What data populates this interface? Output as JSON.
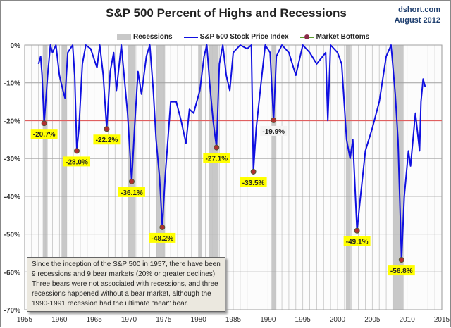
{
  "source": {
    "site": "dshort.com",
    "date": "August 2012"
  },
  "colors": {
    "line": "#1010e0",
    "recession": "#c8c8c8",
    "threshold": "#e06060",
    "marker": "#b03030",
    "label_bg": "#ffff00"
  },
  "note": [
    "Since the inception of the S&P 500  in 1957,  there have been",
    "9 recessions and 9  bear markets (20% or greater declines).",
    "Three bears were not associated with recessions, and three",
    "recessions happened without a bear market, although the",
    "1990-1991  recession had the ultimate \"near\" bear."
  ],
  "chart_data": {
    "type": "line",
    "title": "S&P 500 Percent of Highs and Recessions",
    "legend": [
      "Recessions",
      "S&P 500 Stock Price Index",
      "Market Bottoms"
    ],
    "legend_position": "top",
    "xlim": [
      1955,
      2015
    ],
    "ylim": [
      -70,
      0
    ],
    "x_ticks": [
      "1955",
      "1960",
      "1965",
      "1970",
      "1975",
      "1980",
      "1985",
      "1990",
      "1995",
      "2000",
      "2005",
      "2010",
      "2015"
    ],
    "y_ticks": [
      "0%",
      "-10%",
      "-20%",
      "-30%",
      "-40%",
      "-50%",
      "-60%",
      "-70%"
    ],
    "grid": true,
    "threshold": -20,
    "recessions": [
      [
        1957.6,
        1958.3
      ],
      [
        1960.3,
        1961.1
      ],
      [
        1969.9,
        1970.9
      ],
      [
        1973.9,
        1975.2
      ],
      [
        1980.0,
        1980.5
      ],
      [
        1981.5,
        1982.9
      ],
      [
        1990.5,
        1991.2
      ],
      [
        2001.2,
        2001.9
      ],
      [
        2007.9,
        2009.5
      ]
    ],
    "series": [
      {
        "name": "S&P 500 Stock Price Index",
        "points": [
          [
            1957.0,
            -5
          ],
          [
            1957.3,
            -3
          ],
          [
            1957.5,
            -8
          ],
          [
            1957.8,
            -20.7
          ],
          [
            1958.3,
            -8
          ],
          [
            1958.7,
            0
          ],
          [
            1959.0,
            -2
          ],
          [
            1959.5,
            0
          ],
          [
            1960.0,
            -8
          ],
          [
            1960.5,
            -12
          ],
          [
            1960.8,
            -14
          ],
          [
            1961.2,
            -2
          ],
          [
            1961.9,
            0
          ],
          [
            1962.2,
            -8
          ],
          [
            1962.5,
            -28.0
          ],
          [
            1962.8,
            -22
          ],
          [
            1963.3,
            -5
          ],
          [
            1963.8,
            0
          ],
          [
            1964.5,
            -1
          ],
          [
            1965.4,
            -6
          ],
          [
            1965.8,
            0
          ],
          [
            1966.3,
            -8
          ],
          [
            1966.8,
            -22.2
          ],
          [
            1967.3,
            -7
          ],
          [
            1967.8,
            -2
          ],
          [
            1968.2,
            -12
          ],
          [
            1968.9,
            0
          ],
          [
            1969.3,
            -8
          ],
          [
            1969.8,
            -18
          ],
          [
            1970.4,
            -36.1
          ],
          [
            1970.8,
            -22
          ],
          [
            1971.3,
            -7
          ],
          [
            1971.8,
            -13
          ],
          [
            1972.5,
            -3
          ],
          [
            1973.0,
            0
          ],
          [
            1973.5,
            -12
          ],
          [
            1973.9,
            -25
          ],
          [
            1974.4,
            -35
          ],
          [
            1974.8,
            -48.2
          ],
          [
            1975.2,
            -35
          ],
          [
            1975.6,
            -25
          ],
          [
            1976.0,
            -15
          ],
          [
            1976.8,
            -15
          ],
          [
            1977.5,
            -20
          ],
          [
            1978.2,
            -26
          ],
          [
            1978.7,
            -17
          ],
          [
            1979.3,
            -18
          ],
          [
            1980.2,
            -12
          ],
          [
            1980.8,
            -3
          ],
          [
            1981.2,
            0
          ],
          [
            1981.6,
            -10
          ],
          [
            1982.1,
            -20
          ],
          [
            1982.6,
            -27.1
          ],
          [
            1983.0,
            -5
          ],
          [
            1983.5,
            0
          ],
          [
            1984.0,
            -8
          ],
          [
            1984.5,
            -12
          ],
          [
            1985.0,
            -2
          ],
          [
            1986.0,
            0
          ],
          [
            1987.0,
            -1
          ],
          [
            1987.6,
            0
          ],
          [
            1987.9,
            -33.5
          ],
          [
            1988.3,
            -22
          ],
          [
            1989.0,
            -10
          ],
          [
            1989.6,
            0
          ],
          [
            1990.3,
            -2
          ],
          [
            1990.8,
            -19.9
          ],
          [
            1991.2,
            -3
          ],
          [
            1992.0,
            0
          ],
          [
            1993.0,
            -2
          ],
          [
            1994.0,
            -8
          ],
          [
            1995.0,
            0
          ],
          [
            1996.0,
            -2
          ],
          [
            1997.0,
            -5
          ],
          [
            1998.3,
            -2
          ],
          [
            1998.6,
            -20
          ],
          [
            1999.0,
            0
          ],
          [
            2000.0,
            -2
          ],
          [
            2000.6,
            -5
          ],
          [
            2001.3,
            -25
          ],
          [
            2001.8,
            -30
          ],
          [
            2002.2,
            -25
          ],
          [
            2002.8,
            -49.1
          ],
          [
            2003.3,
            -40
          ],
          [
            2004.0,
            -28
          ],
          [
            2005.0,
            -22
          ],
          [
            2006.0,
            -15
          ],
          [
            2007.0,
            -3
          ],
          [
            2007.7,
            0
          ],
          [
            2008.3,
            -13
          ],
          [
            2008.7,
            -25
          ],
          [
            2009.2,
            -56.8
          ],
          [
            2009.6,
            -40
          ],
          [
            2010.2,
            -28
          ],
          [
            2010.5,
            -32
          ],
          [
            2011.2,
            -18
          ],
          [
            2011.8,
            -28
          ],
          [
            2012.0,
            -15
          ],
          [
            2012.3,
            -9
          ],
          [
            2012.6,
            -11
          ]
        ]
      }
    ],
    "market_bottoms": [
      {
        "year": 1957.8,
        "value": -20.7,
        "label": "-20.7%",
        "highlight": true
      },
      {
        "year": 1962.5,
        "value": -28.0,
        "label": "-28.0%",
        "highlight": true
      },
      {
        "year": 1966.8,
        "value": -22.2,
        "label": "-22.2%",
        "highlight": true
      },
      {
        "year": 1970.4,
        "value": -36.1,
        "label": "-36.1%",
        "highlight": true
      },
      {
        "year": 1974.8,
        "value": -48.2,
        "label": "-48.2%",
        "highlight": true
      },
      {
        "year": 1982.6,
        "value": -27.1,
        "label": "-27.1%",
        "highlight": true
      },
      {
        "year": 1987.9,
        "value": -33.5,
        "label": "-33.5%",
        "highlight": true
      },
      {
        "year": 1990.8,
        "value": -19.9,
        "label": "-19.9%",
        "highlight": false
      },
      {
        "year": 2002.8,
        "value": -49.1,
        "label": "-49.1%",
        "highlight": true
      },
      {
        "year": 2009.2,
        "value": -56.8,
        "label": "-56.8%",
        "highlight": true
      }
    ]
  }
}
